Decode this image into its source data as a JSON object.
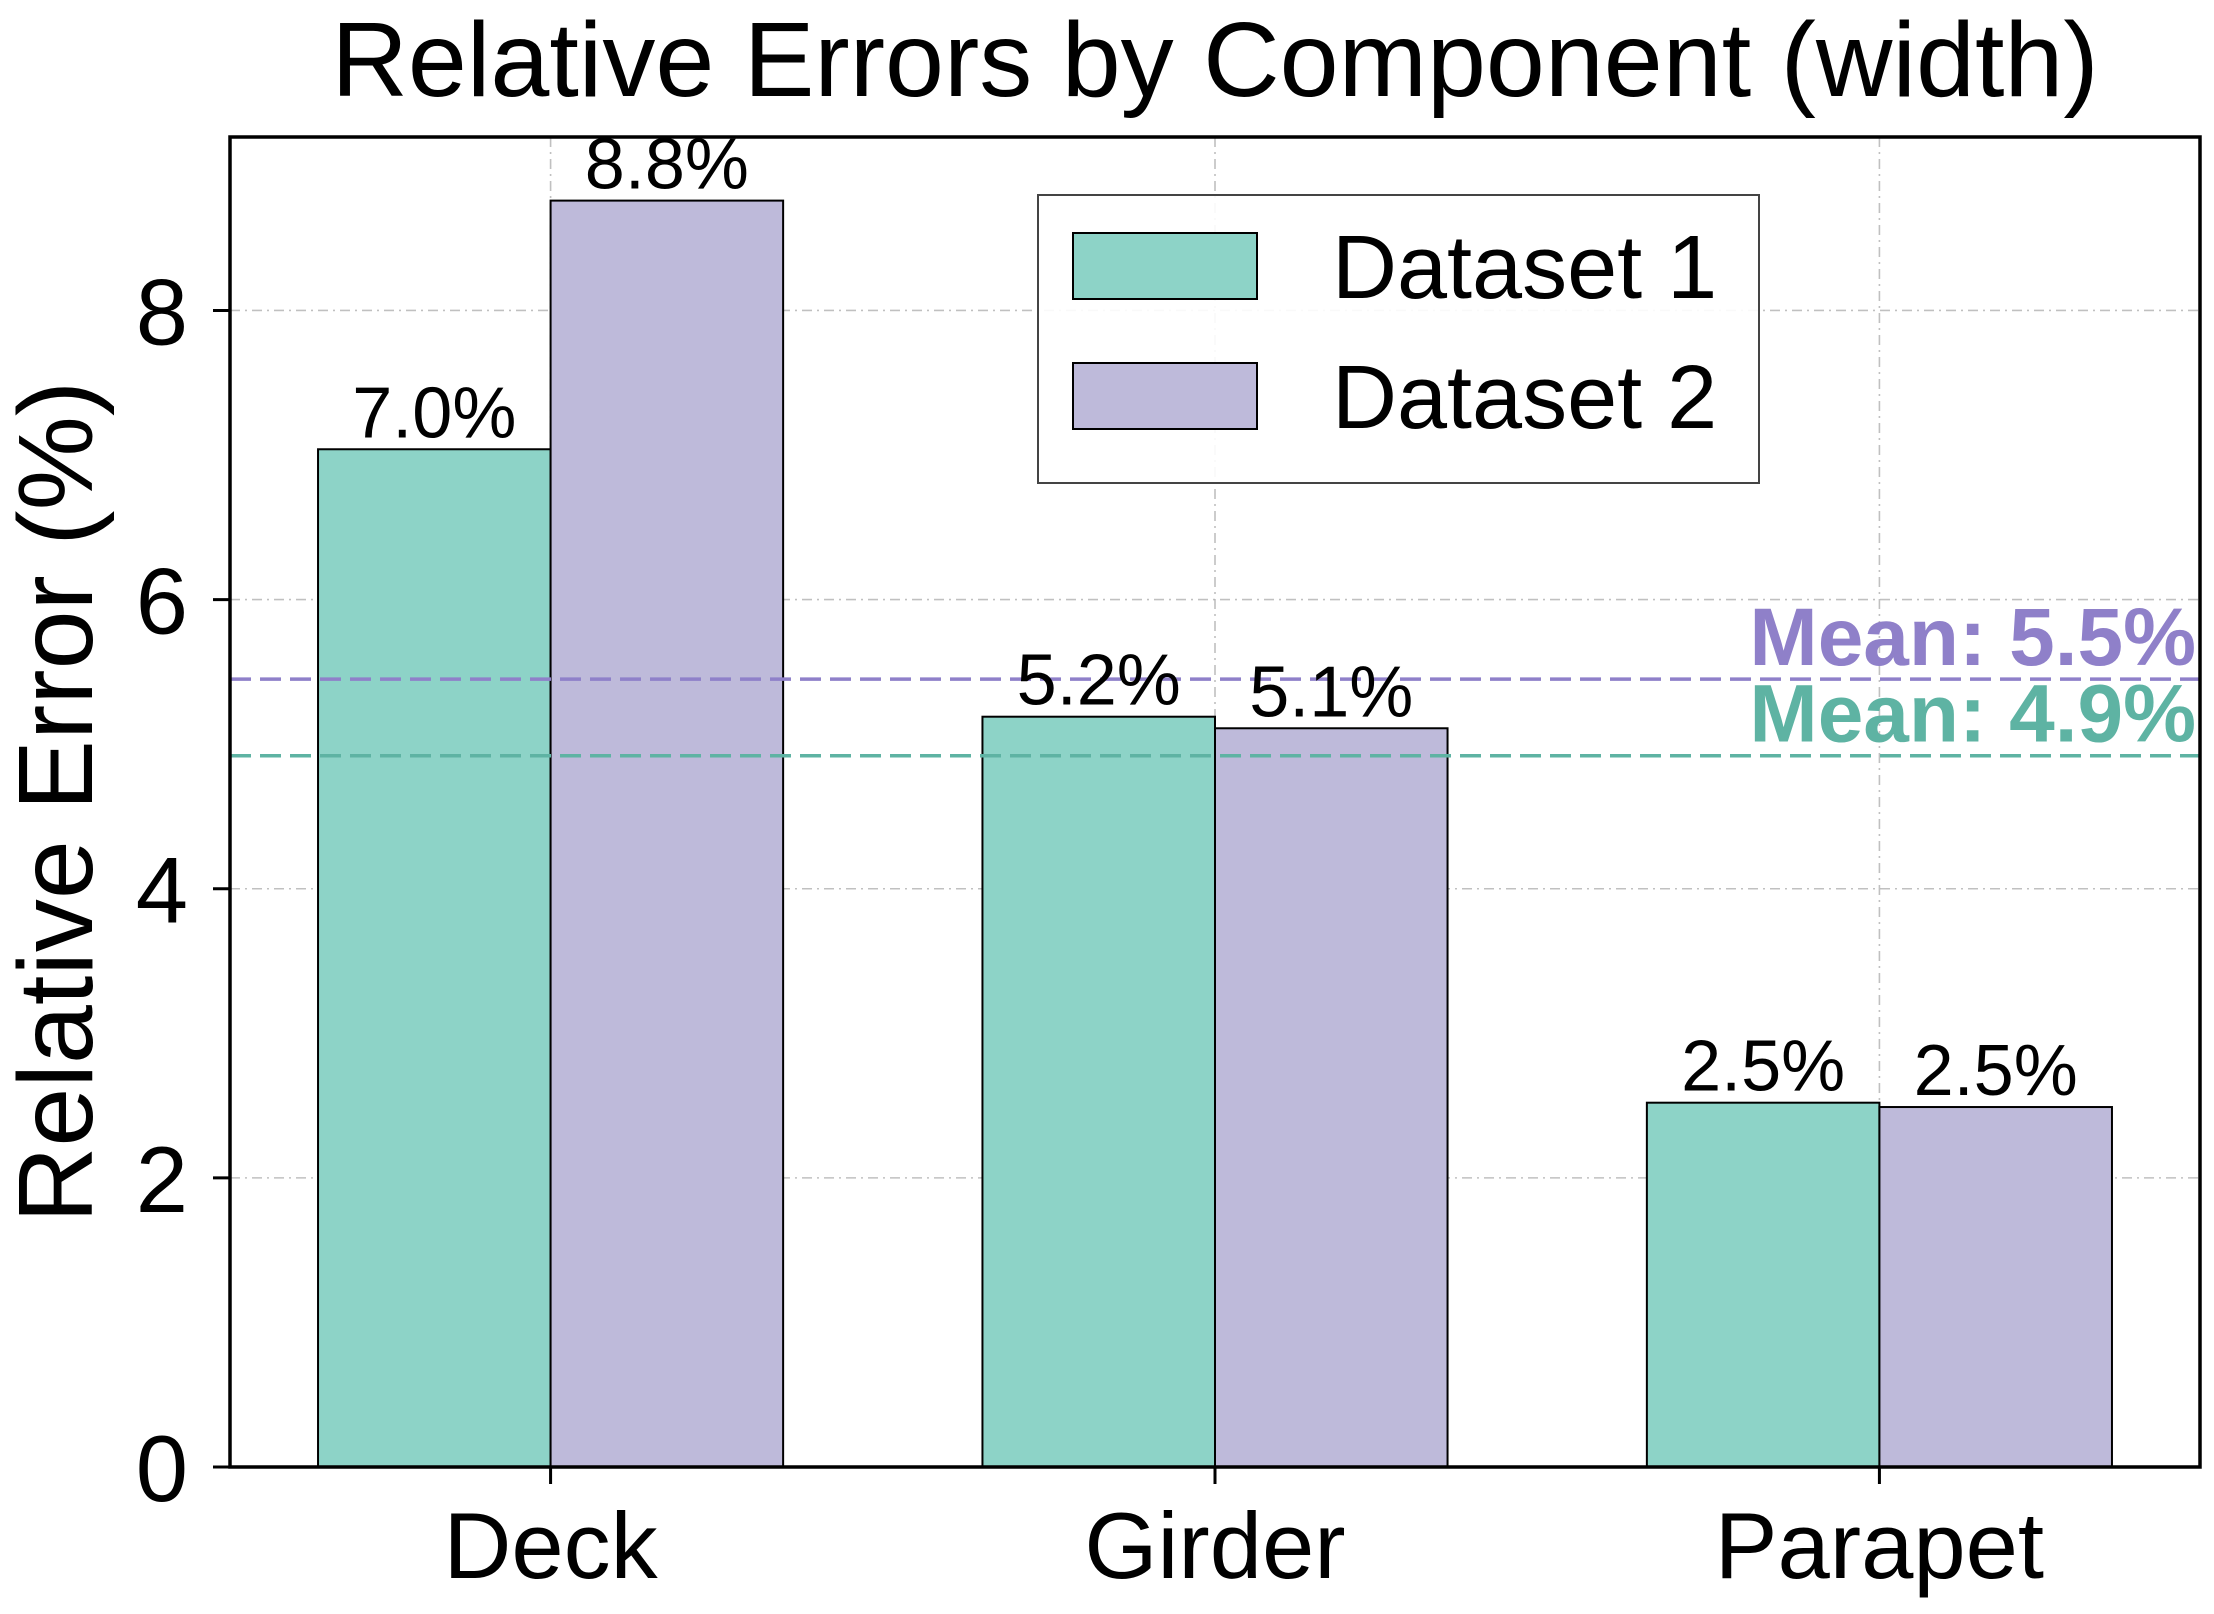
{
  "chart_data": {
    "type": "bar",
    "title": "Relative Errors by Component (width)",
    "ylabel": "Relative Error (%)",
    "categories": [
      "Deck",
      "Girder",
      "Parapet"
    ],
    "series": [
      {
        "name": "Dataset 1",
        "values": [
          7.04,
          5.19,
          2.52
        ],
        "labels": [
          "7.0%",
          "5.2%",
          "2.5%"
        ],
        "color": "#8dd3c7",
        "mean": 4.92,
        "mean_label": "Mean: 4.9%",
        "mean_color": "#5eb3a3"
      },
      {
        "name": "Dataset 2",
        "values": [
          8.76,
          5.11,
          2.49
        ],
        "labels": [
          "8.8%",
          "5.1%",
          "2.5%"
        ],
        "color": "#bebada",
        "mean": 5.45,
        "mean_label": "Mean: 5.5%",
        "mean_color": "#8f80c9"
      }
    ],
    "yticks": [
      0,
      2,
      4,
      6,
      8
    ],
    "ylim": [
      0,
      9.2
    ],
    "grid": true,
    "legend_position": "upper center"
  }
}
